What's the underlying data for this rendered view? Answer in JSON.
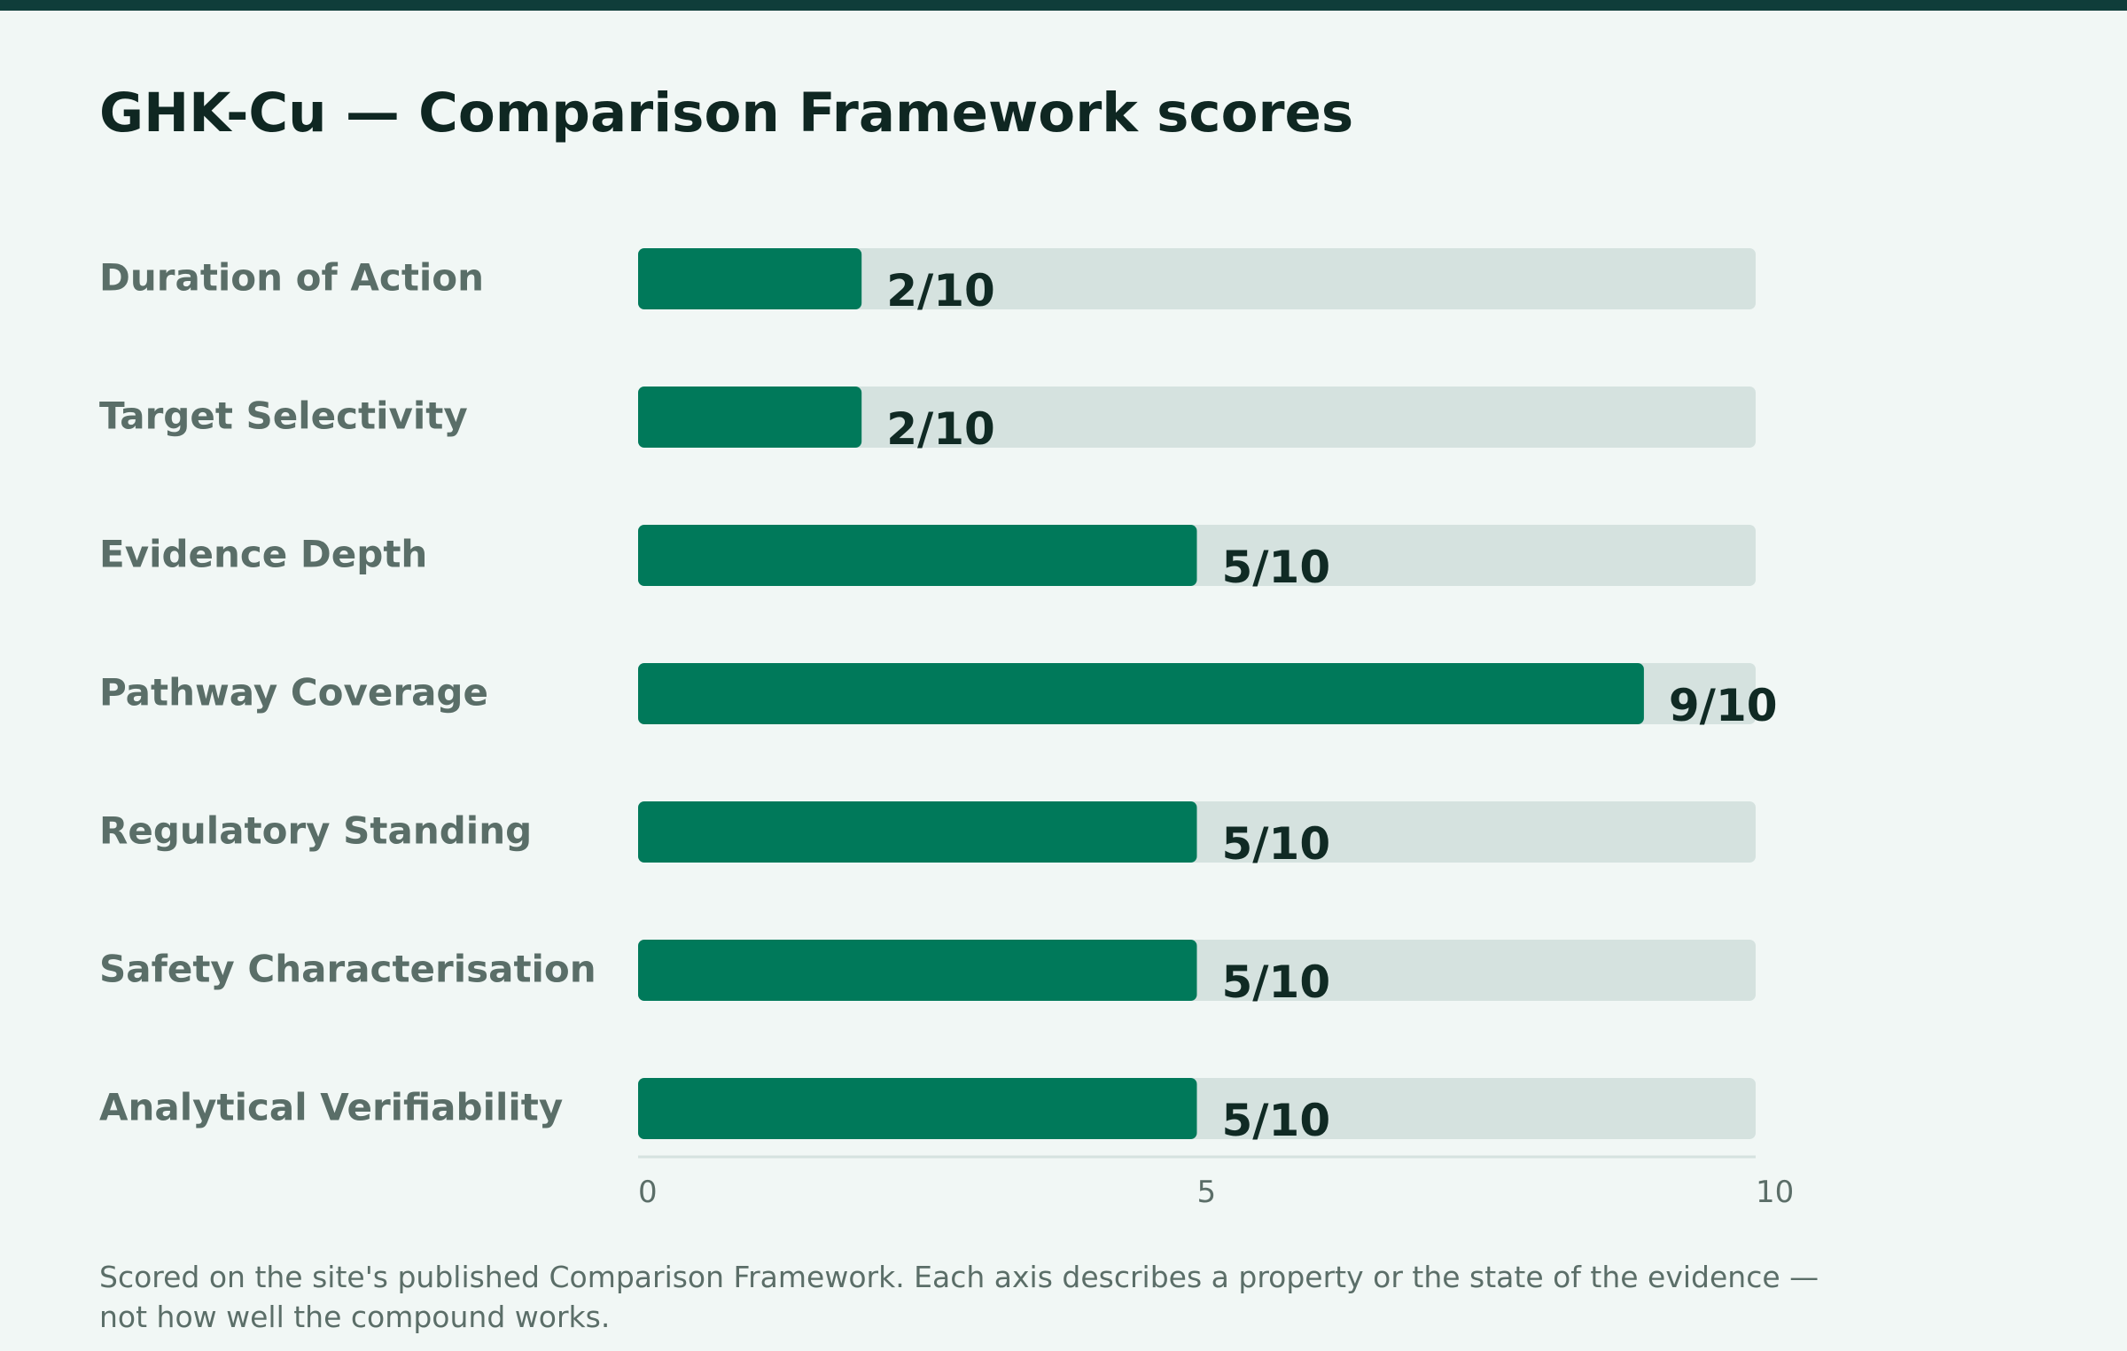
{
  "chart_data": {
    "type": "bar",
    "orientation": "horizontal",
    "title": "GHK-Cu — Comparison Framework scores",
    "categories": [
      "Duration of Action",
      "Target Selectivity",
      "Evidence Depth",
      "Pathway Coverage",
      "Regulatory Standing",
      "Safety Characterisation",
      "Analytical Verifiability"
    ],
    "values": [
      2,
      2,
      5,
      9,
      5,
      5,
      5
    ],
    "value_labels": [
      "2/10",
      "2/10",
      "5/10",
      "9/10",
      "5/10",
      "5/10",
      "5/10"
    ],
    "xlim": [
      0,
      10
    ],
    "x_ticks": [
      "0",
      "5",
      "10"
    ],
    "xlabel": "",
    "ylabel": "",
    "grid": false,
    "legend": "none",
    "colors": {
      "bar": "#00795a",
      "track": "#d5e2df",
      "category_label": "#5a6e68",
      "value_label": "#102a24",
      "tick_label": "#5b6e68",
      "axis": "#d5e2df"
    }
  },
  "footnote": "Scored on the site's published Comparison Framework. Each axis describes a property or the state of the evidence — not how well the compound works."
}
